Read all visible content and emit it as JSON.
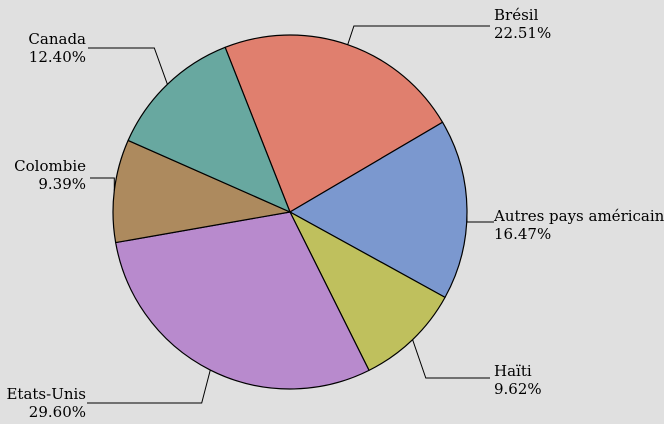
{
  "chart_data": {
    "type": "pie",
    "title": "",
    "start_angle_deg": -21.5,
    "direction": "clockwise",
    "slices": [
      {
        "label": "Brésil",
        "value": 22.51,
        "value_label": "22.51%",
        "color": "#e07f6e"
      },
      {
        "label": "Autres pays américains",
        "value": 16.47,
        "value_label": "16.47%",
        "color": "#7b98cf"
      },
      {
        "label": "Haïti",
        "value": 9.62,
        "value_label": "9.62%",
        "color": "#bfc05d"
      },
      {
        "label": "Etats-Unis",
        "value": 29.6,
        "value_label": "29.60%",
        "color": "#b88acd"
      },
      {
        "label": "Colombie",
        "value": 9.39,
        "value_label": "9.39%",
        "color": "#ad8a5e"
      },
      {
        "label": "Canada",
        "value": 12.4,
        "value_label": "12.40%",
        "color": "#68a8a0"
      }
    ]
  }
}
